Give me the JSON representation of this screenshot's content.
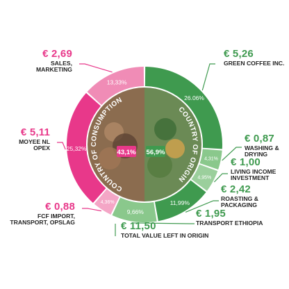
{
  "chart_data": {
    "type": "pie",
    "style": "donut with inner origin/consumption split",
    "inner_segments": [
      {
        "label": "COUNTRY OF CONSUMPTION",
        "percent_label": "43,1%",
        "value": 43.1,
        "color": "#e8388a"
      },
      {
        "label": "COUNTRY OF ORIGIN",
        "percent_label": "56,9%",
        "value": 56.9,
        "color": "#3f9a4f"
      }
    ],
    "slices": [
      {
        "group": "origin",
        "percent_label": "26.06%",
        "value": 26.06,
        "color": "#3f9a4f",
        "amount": "€ 5,26",
        "name": "GREEN COFFEE INC."
      },
      {
        "group": "origin",
        "percent_label": "4,31%",
        "value": 4.31,
        "color": "#8ac88c",
        "amount": "€ 0,87",
        "name": "WASHING & DRYING"
      },
      {
        "group": "origin",
        "percent_label": "4,95%",
        "value": 4.95,
        "color": "#9bcf9c",
        "amount": "€ 1,00",
        "name": "LIVING INCOME INVESTMENT"
      },
      {
        "group": "origin",
        "percent_label": "11,99%",
        "value": 11.99,
        "color": "#3f9a4f",
        "amount": "€ 2,42",
        "name": "ROASTING & PACKAGING"
      },
      {
        "group": "origin",
        "percent_label": "9,66%",
        "value": 9.66,
        "color": "#8ac88c",
        "amount": "€ 1,95",
        "name": "TRANSPORT ETHIOPIA"
      },
      {
        "group": "consumption",
        "percent_label": "4,36%",
        "value": 4.36,
        "color": "#f4a6c6",
        "amount": "€ 0,88",
        "name": "FCF IMPORT, TRANSPORT, OPSLAG"
      },
      {
        "group": "consumption",
        "percent_label": "25,32%",
        "value": 25.32,
        "color": "#e8388a",
        "amount": "€ 5,11",
        "name": "MOYEE NL OPEX"
      },
      {
        "group": "consumption",
        "percent_label": "13,33%",
        "value": 13.33,
        "color": "#f08cb6",
        "amount": "€ 2,69",
        "name": "SALES, MARKETING"
      }
    ],
    "summary": {
      "amount": "€ 11,50",
      "name": "TOTAL VALUE LEFT IN ORIGIN",
      "color": "#3f9a4f"
    }
  }
}
